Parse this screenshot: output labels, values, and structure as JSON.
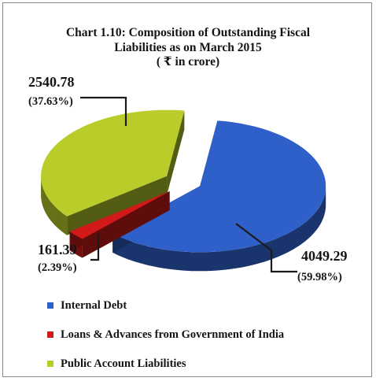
{
  "chart_data": {
    "type": "pie",
    "title_lines": [
      "Chart 1.10: Composition of  Outstanding Fiscal",
      "Liabilities as on March 2015",
      "( ₹ in crore)"
    ],
    "series": [
      {
        "name": "Internal Debt",
        "value": 4049.29,
        "percent_label": "(59.98%)",
        "color": "#2f5fc8"
      },
      {
        "name": "Loans & Advances from Government of India",
        "value": 161.39,
        "percent_label": "(2.39%)",
        "color": "#d21a1a"
      },
      {
        "name": "Public Account Liabilities",
        "value": 2540.78,
        "percent_label": "(37.63%)",
        "color": "#b9cc2a"
      }
    ],
    "style": "3d-exploded",
    "legend_position": "bottom-left"
  }
}
